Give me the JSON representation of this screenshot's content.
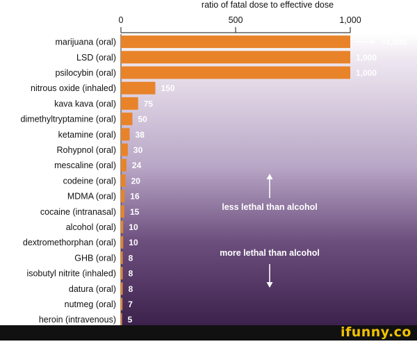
{
  "chart_data": {
    "type": "bar",
    "orientation": "horizontal",
    "title": "ratio of fatal dose to effective dose",
    "xlim": [
      0,
      1000
    ],
    "xticks": [
      0,
      500,
      1000
    ],
    "xtick_labels": [
      "0",
      "500",
      "1,000"
    ],
    "categories": [
      "marijuana (oral)",
      "LSD (oral)",
      "psilocybin (oral)",
      "nitrous oxide (inhaled)",
      "kava kava (oral)",
      "dimethyltryptamine (oral)",
      "ketamine (oral)",
      "Rohypnol (oral)",
      "mescaline (oral)",
      "codeine (oral)",
      "MDMA (oral)",
      "cocaine (intranasal)",
      "alcohol (oral)",
      "dextromethorphan (oral)",
      "GHB (oral)",
      "isobutyl nitrite (inhaled)",
      "datura (oral)",
      "nutmeg (oral)",
      "heroin (intravenous)"
    ],
    "values": [
      1000,
      1000,
      1000,
      150,
      75,
      50,
      38,
      30,
      24,
      20,
      16,
      15,
      10,
      10,
      8,
      8,
      8,
      7,
      5
    ],
    "value_labels": [
      ">1,000",
      "1,000",
      "1,000",
      "150",
      "75",
      "50",
      "38",
      "30",
      "24",
      "20",
      "16",
      "15",
      "10",
      "10",
      "8",
      "8",
      "8",
      "7",
      "5"
    ],
    "annotations": {
      "above": "less lethal than alcohol",
      "below": "more lethal than alcohol"
    },
    "bar_color": "#e8832a",
    "background_gradient": [
      "#ffffff",
      "#b8a6c6",
      "#3a1f4a"
    ],
    "grid": false,
    "legend": "none"
  },
  "footer": {
    "brand": "ifunny.co",
    "background": "#111111",
    "brand_color": "#f2c200"
  }
}
